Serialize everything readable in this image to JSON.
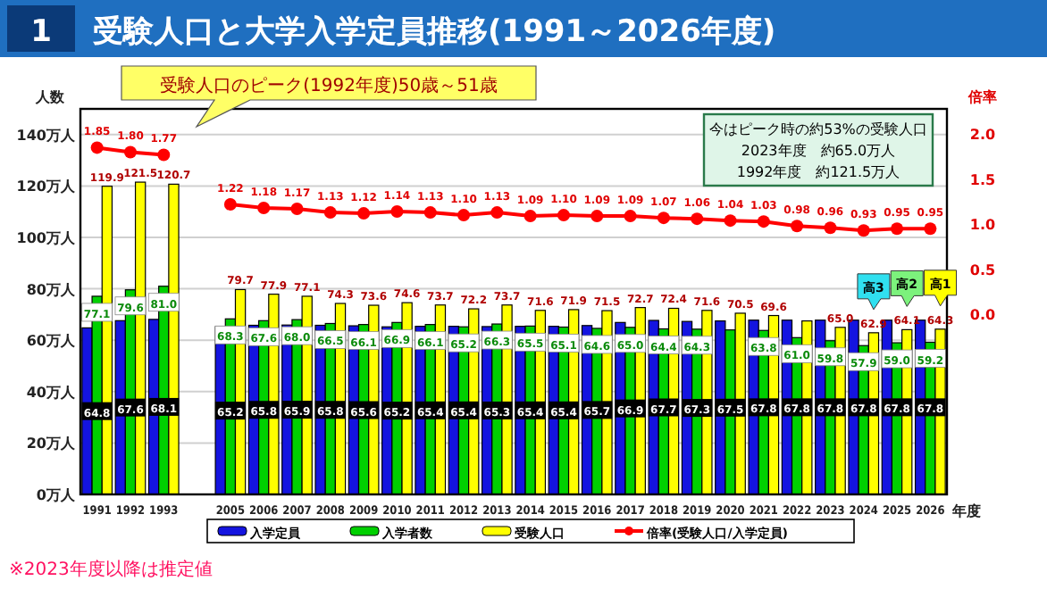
{
  "chart_data": {
    "type": "bar",
    "title": "受験人口と大学入学定員推移(1991～2026年度)",
    "categories": [
      "1991",
      "1992",
      "1993",
      null,
      "2005",
      "2006",
      "2007",
      "2008",
      "2009",
      "2010",
      "2011",
      "2012",
      "2013",
      "2014",
      "2015",
      "2016",
      "2017",
      "2018",
      "2019",
      "2020",
      "2021",
      "2022",
      "2023",
      "2024",
      "2025",
      "2026"
    ],
    "series": [
      {
        "name": "入学定員",
        "color": "#1414e0",
        "values": [
          64.8,
          67.6,
          68.1,
          null,
          65.2,
          65.8,
          65.9,
          65.8,
          65.6,
          65.2,
          65.4,
          65.4,
          65.3,
          65.4,
          65.4,
          65.7,
          66.9,
          67.7,
          67.3,
          67.5,
          67.8,
          67.8,
          67.8,
          67.8,
          67.8,
          67.8
        ],
        "value_labels": [
          "64.8",
          "67.6",
          "68.1",
          null,
          "65.2",
          "65.8",
          "65.9",
          "65.8",
          "65.6",
          "65.2",
          "65.4",
          "65.4",
          "65.3",
          "65.4",
          "65.4",
          "65.7",
          "66.9",
          "67.7",
          "67.3",
          "67.5",
          "67.8",
          "67.8",
          "67.8",
          "67.8",
          "67.8",
          "67.8"
        ]
      },
      {
        "name": "入学者数",
        "color": "#00d000",
        "values": [
          77.1,
          79.6,
          81.0,
          null,
          68.3,
          67.6,
          68.0,
          66.5,
          66.1,
          66.9,
          66.1,
          65.2,
          66.3,
          65.5,
          65.1,
          64.6,
          65.0,
          64.4,
          64.3,
          64.0,
          63.8,
          61.0,
          59.8,
          57.9,
          59.0,
          59.2
        ],
        "value_labels": [
          "77.1",
          "79.6",
          "81.0",
          null,
          "68.3",
          "67.6",
          "68.0",
          "66.5",
          "66.1",
          "66.9",
          "66.1",
          "65.2",
          "66.3",
          "65.5",
          "65.1",
          "64.6",
          "65.0",
          "64.4",
          "64.3",
          null,
          "63.8",
          "61.0",
          "59.8",
          "57.9",
          "59.0",
          "59.2"
        ]
      },
      {
        "name": "受験人口",
        "color": "#ffff00",
        "values": [
          119.9,
          121.5,
          120.7,
          null,
          79.7,
          77.9,
          77.1,
          74.3,
          73.6,
          74.6,
          73.7,
          72.2,
          73.7,
          71.6,
          71.9,
          71.5,
          72.7,
          72.4,
          71.6,
          70.5,
          69.6,
          67.5,
          65.0,
          62.9,
          64.1,
          64.3
        ],
        "value_labels": [
          "119.9",
          "121.5",
          "120.7",
          null,
          "79.7",
          "77.9",
          "77.1",
          "74.3",
          "73.6",
          "74.6",
          "73.7",
          "72.2",
          "73.7",
          "71.6",
          "71.9",
          "71.5",
          "72.7",
          "72.4",
          "71.6",
          "70.5",
          "69.6",
          null,
          "65.0",
          "62.9",
          "64.1",
          "64.3"
        ]
      },
      {
        "name": "倍率(受験人口/入学定員)",
        "type": "line",
        "axis": "y2",
        "marker": "circle",
        "color": "#ff0000",
        "values": [
          1.85,
          1.8,
          1.77,
          null,
          1.22,
          1.18,
          1.17,
          1.13,
          1.12,
          1.14,
          1.13,
          1.1,
          1.13,
          1.09,
          1.1,
          1.09,
          1.09,
          1.07,
          1.06,
          1.04,
          1.03,
          0.98,
          0.96,
          0.93,
          0.95,
          0.95
        ],
        "value_labels": [
          "1.85",
          "1.80",
          "1.77",
          null,
          "1.22",
          "1.18",
          "1.17",
          "1.13",
          "1.12",
          "1.14",
          "1.13",
          "1.10",
          "1.13",
          "1.09",
          "1.10",
          "1.09",
          "1.09",
          "1.07",
          "1.06",
          "1.04",
          "1.03",
          "0.98",
          "0.96",
          "0.93",
          "0.95",
          "0.95"
        ]
      }
    ],
    "ylabel": "人数",
    "y2label": "倍率",
    "xlabel": "年度",
    "ylim": [
      0,
      150
    ],
    "yticks": [
      {
        "value": 0,
        "label": "0万人"
      },
      {
        "value": 20,
        "label": "20万人"
      },
      {
        "value": 40,
        "label": "40万人"
      },
      {
        "value": 60,
        "label": "60万人"
      },
      {
        "value": 80,
        "label": "80万人"
      },
      {
        "value": 100,
        "label": "100万人"
      },
      {
        "value": 120,
        "label": "120万人"
      },
      {
        "value": 140,
        "label": "140万人"
      }
    ],
    "y2lim": [
      -2.0,
      2.28
    ],
    "y2ticks": [
      {
        "value": 0,
        "label": "0.0"
      },
      {
        "value": 0.5,
        "label": "0.5"
      },
      {
        "value": 1,
        "label": "1.0"
      },
      {
        "value": 1.5,
        "label": "1.5"
      },
      {
        "value": 2,
        "label": "2.0"
      }
    ],
    "grid": "y",
    "legend": "bottom",
    "annotations": [
      "1",
      "受験人口のピーク(1992年度)50歳～51歳",
      "今はピーク時の約53%の受験人口",
      "2023年度　約65.0万人",
      "1992年度　約121.5万人",
      "高3",
      "高2",
      "高1",
      "※2023年度以降は推定値"
    ]
  }
}
